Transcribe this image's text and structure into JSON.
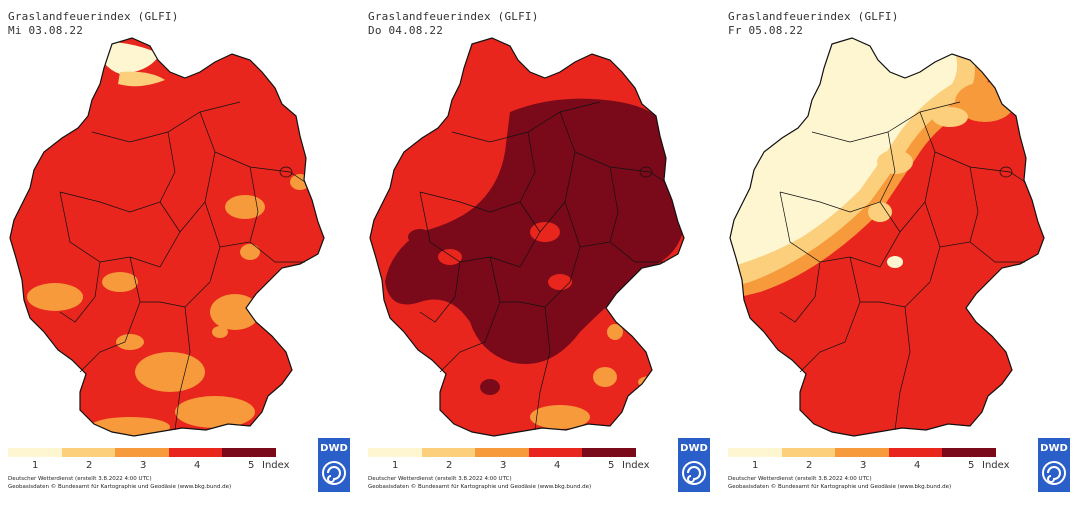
{
  "colors": {
    "level1": "#fdf6d1",
    "level2": "#fbcf7c",
    "level3": "#f79a3c",
    "level4": "#e8261d",
    "level5": "#7a0a1a",
    "border": "#111111",
    "dwd_blue": "#2a5ec8"
  },
  "legend": {
    "labels": [
      "1",
      "2",
      "3",
      "4",
      "5"
    ],
    "unit": "Index"
  },
  "credits": {
    "line1": "Deutscher Wetterdienst (erstellt 3.8.2022 4:00 UTC)",
    "line2": "Geobasisdaten © Bundesamt für Kartographie und Geodäsie (www.bkg.bund.de)"
  },
  "logo": {
    "text": "DWD",
    "icon": "dwd-logo-swirl-icon"
  },
  "maps": [
    {
      "title": "Graslandfeuerindex (GLFI)",
      "date": "Mi 03.08.22",
      "dominant_level": 4
    },
    {
      "title": "Graslandfeuerindex (GLFI)",
      "date": "Do 04.08.22",
      "dominant_level": 5
    },
    {
      "title": "Graslandfeuerindex (GLFI)",
      "date": "Fr 05.08.22",
      "dominant_level": 4
    }
  ]
}
